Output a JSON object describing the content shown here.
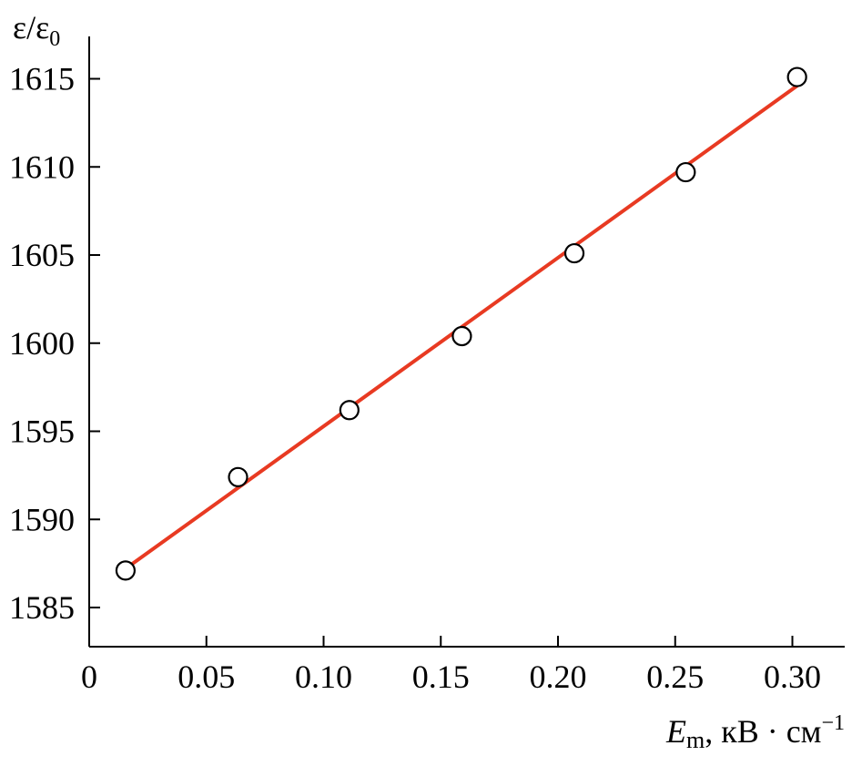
{
  "chart_data": {
    "type": "scatter",
    "title": "",
    "ylabel": {
      "main": "ε/ε",
      "sub": "0"
    },
    "xlabel": {
      "main": "E",
      "sub": "m",
      "rest": ", кВ · см",
      "sup": "−1"
    },
    "xlim": [
      0,
      0.32
    ],
    "ylim": [
      1582.8,
      1618.2
    ],
    "x_ticks": [
      0,
      0.05,
      0.1,
      0.15,
      0.2,
      0.25,
      0.3
    ],
    "x_tick_labels": [
      "0",
      "0.05",
      "0.10",
      "0.15",
      "0.20",
      "0.25",
      "0.30"
    ],
    "y_ticks": [
      1585,
      1590,
      1595,
      1600,
      1605,
      1610,
      1615
    ],
    "y_tick_labels": [
      "1585",
      "1590",
      "1595",
      "1600",
      "1605",
      "1610",
      "1615"
    ],
    "series": [
      {
        "marker": "open-circle",
        "x": [
          0.0155,
          0.0635,
          0.111,
          0.159,
          0.207,
          0.2545,
          0.302
        ],
        "y": [
          1587.1,
          1592.4,
          1596.2,
          1600.4,
          1605.1,
          1609.7,
          1615.1
        ]
      }
    ],
    "fit_line": {
      "x": [
        0.0155,
        0.302
      ],
      "y": [
        1587.2,
        1614.6
      ],
      "color": "#e83a22"
    },
    "grid": false
  }
}
